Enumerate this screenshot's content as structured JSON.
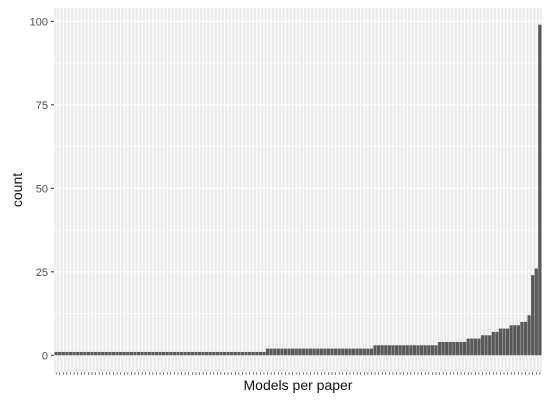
{
  "chart_data": {
    "type": "bar",
    "title": "",
    "xlabel": "Models per paper",
    "ylabel": "count",
    "ylim": [
      -5,
      104
    ],
    "yticks": [
      0,
      25,
      50,
      75,
      100
    ],
    "ytick_labels": [
      "0",
      "25",
      "50",
      "75",
      "100"
    ],
    "grid": true,
    "x_tick_labels_shown": false,
    "panel_background": "#ebebeb",
    "grid_color": "#ffffff",
    "bar_color": "#595959",
    "values": [
      1,
      1,
      1,
      1,
      1,
      1,
      1,
      1,
      1,
      1,
      1,
      1,
      1,
      1,
      1,
      1,
      1,
      1,
      1,
      1,
      1,
      1,
      1,
      1,
      1,
      1,
      1,
      1,
      1,
      1,
      1,
      1,
      1,
      1,
      1,
      1,
      1,
      1,
      1,
      1,
      1,
      1,
      1,
      1,
      1,
      1,
      1,
      1,
      1,
      1,
      1,
      1,
      1,
      1,
      1,
      1,
      1,
      1,
      1,
      2,
      2,
      2,
      2,
      2,
      2,
      2,
      2,
      2,
      2,
      2,
      2,
      2,
      2,
      2,
      2,
      2,
      2,
      2,
      2,
      2,
      2,
      2,
      2,
      2,
      2,
      2,
      2,
      2,
      2,
      3,
      3,
      3,
      3,
      3,
      3,
      3,
      3,
      3,
      3,
      3,
      3,
      3,
      3,
      3,
      3,
      3,
      3,
      4,
      4,
      4,
      4,
      4,
      4,
      4,
      4,
      5,
      5,
      5,
      5,
      6,
      6,
      6,
      7,
      7,
      8,
      8,
      8,
      9,
      9,
      9,
      10,
      10,
      12,
      24,
      26,
      99
    ]
  }
}
